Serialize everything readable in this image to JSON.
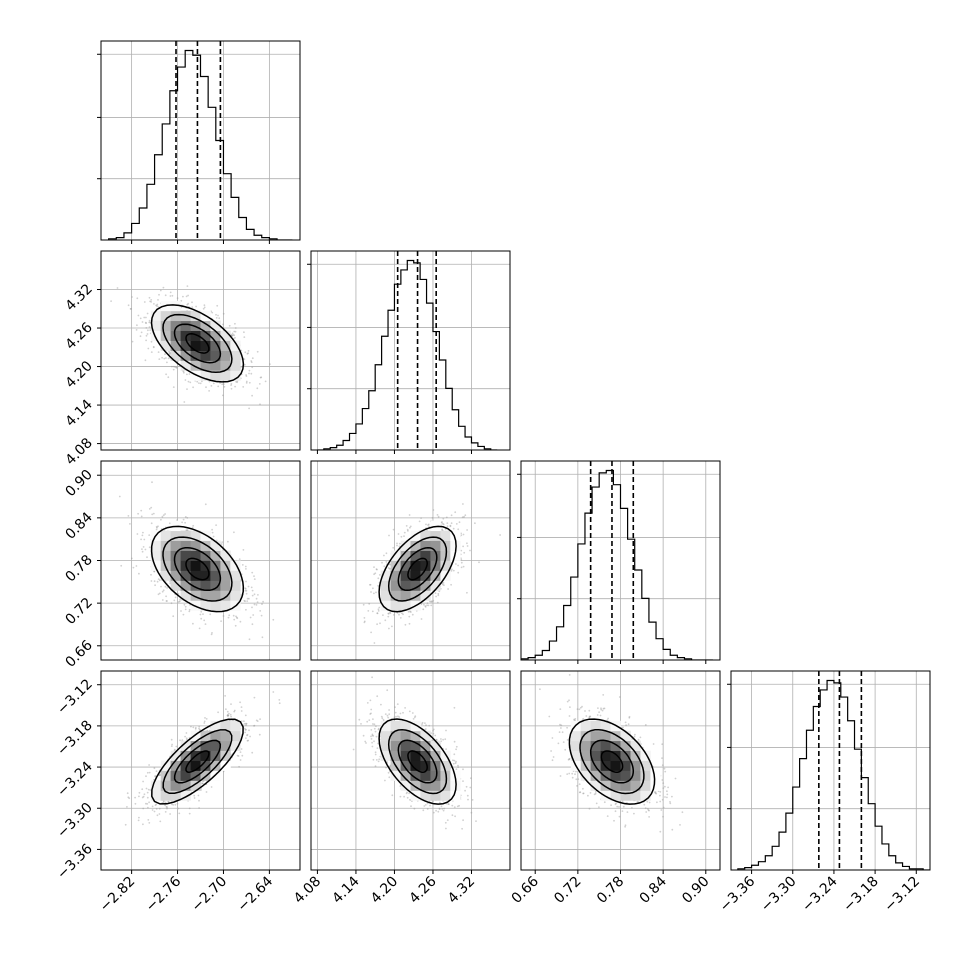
{
  "figure": {
    "type": "corner-plot",
    "grid": true,
    "colors": {
      "line": "#000000",
      "grid": "#b0b0b0",
      "scatter": "#9a9a9a",
      "density_dark": "#000000",
      "density_light": "#ffffff"
    }
  },
  "chart_data": [
    {
      "type": "histogram",
      "row": 0,
      "col": 0,
      "xlim": [
        -2.86,
        -2.6
      ],
      "ticks": [
        -2.82,
        -2.76,
        -2.7,
        -2.64
      ],
      "tick_labels": [
        "−2.82",
        "−2.76",
        "−2.70",
        "−2.64"
      ],
      "quantiles": [
        -2.762,
        -2.734,
        -2.704
      ],
      "bin_edges": [
        -2.85,
        -2.84,
        -2.83,
        -2.82,
        -2.81,
        -2.8,
        -2.79,
        -2.78,
        -2.77,
        -2.76,
        -2.75,
        -2.74,
        -2.73,
        -2.72,
        -2.71,
        -2.7,
        -2.69,
        -2.68,
        -2.67,
        -2.66,
        -2.65,
        -2.64,
        -2.63,
        -2.62,
        -2.61
      ],
      "counts": [
        1,
        2,
        6,
        14,
        27,
        47,
        72,
        98,
        126,
        146,
        160,
        156,
        138,
        112,
        84,
        56,
        36,
        19,
        9,
        4,
        2,
        1,
        0,
        0
      ]
    },
    {
      "type": "histogram",
      "row": 1,
      "col": 1,
      "xlim": [
        4.07,
        4.38
      ],
      "ticks": [
        4.08,
        4.14,
        4.2,
        4.26,
        4.32
      ],
      "tick_labels": [
        "4.08",
        "4.14",
        "4.20",
        "4.26",
        "4.32"
      ],
      "quantiles": [
        4.205,
        4.236,
        4.265
      ],
      "bin_edges": [
        4.08,
        4.09,
        4.1,
        4.11,
        4.12,
        4.13,
        4.14,
        4.15,
        4.16,
        4.17,
        4.18,
        4.19,
        4.2,
        4.21,
        4.22,
        4.23,
        4.24,
        4.25,
        4.26,
        4.27,
        4.28,
        4.29,
        4.3,
        4.31,
        4.32,
        4.33,
        4.34,
        4.35,
        4.36
      ],
      "counts": [
        0,
        1,
        2,
        4,
        8,
        14,
        22,
        35,
        50,
        72,
        96,
        118,
        140,
        152,
        160,
        158,
        144,
        124,
        100,
        76,
        52,
        34,
        20,
        11,
        6,
        3,
        1,
        0
      ]
    },
    {
      "type": "histogram",
      "row": 2,
      "col": 2,
      "xlim": [
        0.64,
        0.92
      ],
      "ticks": [
        0.66,
        0.72,
        0.78,
        0.84,
        0.9
      ],
      "tick_labels": [
        "0.66",
        "0.72",
        "0.78",
        "0.84",
        "0.90"
      ],
      "quantiles": [
        0.738,
        0.768,
        0.798
      ],
      "bin_edges": [
        0.64,
        0.65,
        0.66,
        0.67,
        0.68,
        0.69,
        0.7,
        0.71,
        0.72,
        0.73,
        0.74,
        0.75,
        0.76,
        0.77,
        0.78,
        0.79,
        0.8,
        0.81,
        0.82,
        0.83,
        0.84,
        0.85,
        0.86,
        0.87,
        0.88,
        0.89,
        0.9,
        0.91
      ],
      "counts": [
        1,
        2,
        4,
        8,
        16,
        28,
        46,
        70,
        98,
        124,
        146,
        158,
        160,
        148,
        128,
        102,
        76,
        52,
        32,
        18,
        9,
        4,
        2,
        1,
        0,
        0,
        0
      ]
    },
    {
      "type": "histogram",
      "row": 3,
      "col": 3,
      "xlim": [
        -3.39,
        -3.1
      ],
      "ticks": [
        -3.36,
        -3.3,
        -3.24,
        -3.18,
        -3.12
      ],
      "tick_labels": [
        "−3.36",
        "−3.30",
        "−3.24",
        "−3.18",
        "−3.12"
      ],
      "quantiles": [
        -3.262,
        -3.232,
        -3.2
      ],
      "bin_edges": [
        -3.38,
        -3.37,
        -3.36,
        -3.35,
        -3.34,
        -3.33,
        -3.32,
        -3.31,
        -3.3,
        -3.29,
        -3.28,
        -3.27,
        -3.26,
        -3.25,
        -3.24,
        -3.23,
        -3.22,
        -3.21,
        -3.2,
        -3.19,
        -3.18,
        -3.17,
        -3.16,
        -3.15,
        -3.14,
        -3.13,
        -3.12,
        -3.11,
        -3.1
      ],
      "counts": [
        1,
        2,
        4,
        7,
        12,
        20,
        32,
        48,
        70,
        94,
        118,
        138,
        152,
        160,
        158,
        146,
        126,
        102,
        78,
        56,
        37,
        22,
        12,
        6,
        3,
        1,
        1,
        0
      ]
    },
    {
      "type": "scatter-density",
      "row": 1,
      "col": 0,
      "xlim": [
        -2.86,
        -2.6
      ],
      "ylim": [
        4.07,
        4.38
      ],
      "yticks": [
        4.08,
        4.14,
        4.2,
        4.26,
        4.32
      ],
      "ytick_labels": [
        "4.08",
        "4.14",
        "4.20",
        "4.26",
        "4.32"
      ],
      "mean": [
        -2.734,
        4.236
      ],
      "sd": [
        0.03,
        0.03
      ],
      "rho": -0.55
    },
    {
      "type": "scatter-density",
      "row": 2,
      "col": 0,
      "xlim": [
        -2.86,
        -2.6
      ],
      "ylim": [
        0.64,
        0.92
      ],
      "yticks": [
        0.66,
        0.72,
        0.78,
        0.84,
        0.9
      ],
      "ytick_labels": [
        "0.66",
        "0.72",
        "0.78",
        "0.84",
        "0.90"
      ],
      "mean": [
        -2.734,
        0.768
      ],
      "sd": [
        0.03,
        0.03
      ],
      "rho": -0.45
    },
    {
      "type": "scatter-density",
      "row": 2,
      "col": 1,
      "xlim": [
        4.07,
        4.38
      ],
      "ylim": [
        0.64,
        0.92
      ],
      "mean": [
        4.236,
        0.768
      ],
      "sd": [
        0.03,
        0.03
      ],
      "rho": 0.55
    },
    {
      "type": "scatter-density",
      "row": 3,
      "col": 0,
      "xlim": [
        -2.86,
        -2.6
      ],
      "ylim": [
        -3.39,
        -3.1
      ],
      "yticks": [
        -3.36,
        -3.3,
        -3.24,
        -3.18,
        -3.12
      ],
      "ytick_labels": [
        "−3.36",
        "−3.30",
        "−3.24",
        "−3.18",
        "−3.12"
      ],
      "mean": [
        -2.734,
        -3.232
      ],
      "sd": [
        0.03,
        0.031
      ],
      "rho": 0.75
    },
    {
      "type": "scatter-density",
      "row": 3,
      "col": 1,
      "xlim": [
        4.07,
        4.38
      ],
      "ylim": [
        -3.39,
        -3.1
      ],
      "mean": [
        4.236,
        -3.232
      ],
      "sd": [
        0.03,
        0.031
      ],
      "rho": -0.55
    },
    {
      "type": "scatter-density",
      "row": 3,
      "col": 2,
      "xlim": [
        0.64,
        0.92
      ],
      "ylim": [
        -3.39,
        -3.1
      ],
      "mean": [
        0.768,
        -3.232
      ],
      "sd": [
        0.03,
        0.031
      ],
      "rho": -0.45
    }
  ]
}
